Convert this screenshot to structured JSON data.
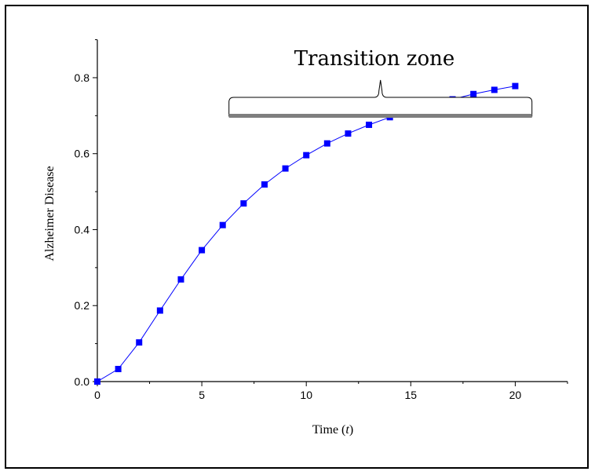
{
  "chart_data": {
    "type": "line",
    "xlabel": "Time (t)",
    "xlabel_main": "Time (",
    "xlabel_var": "t",
    "xlabel_close": ")",
    "ylabel": "Alzheimer Disease",
    "xlim": [
      0,
      22.5
    ],
    "ylim": [
      0,
      0.9
    ],
    "xticks": [
      0,
      5,
      10,
      15,
      20
    ],
    "yticks": [
      0.0,
      0.2,
      0.4,
      0.6,
      0.8
    ],
    "xtick_labels": [
      "0",
      "5",
      "10",
      "15",
      "20"
    ],
    "ytick_labels": [
      "0.0",
      "0.2",
      "0.4",
      "0.6",
      "0.8"
    ],
    "grid": false,
    "series": [
      {
        "color": "#0000ff",
        "marker": "square",
        "x": [
          0,
          1,
          2,
          3,
          4,
          5,
          6,
          7,
          8,
          9,
          10,
          11,
          12,
          13,
          14,
          15,
          16,
          17,
          18,
          19,
          20
        ],
        "y": [
          0.0,
          0.033,
          0.103,
          0.187,
          0.269,
          0.346,
          0.412,
          0.469,
          0.519,
          0.561,
          0.596,
          0.627,
          0.653,
          0.676,
          0.696,
          0.713,
          0.728,
          0.743,
          0.757,
          0.768,
          0.778
        ]
      }
    ],
    "annotation": {
      "text": "Transition zone",
      "x_range": [
        6.3,
        20.8
      ]
    }
  }
}
